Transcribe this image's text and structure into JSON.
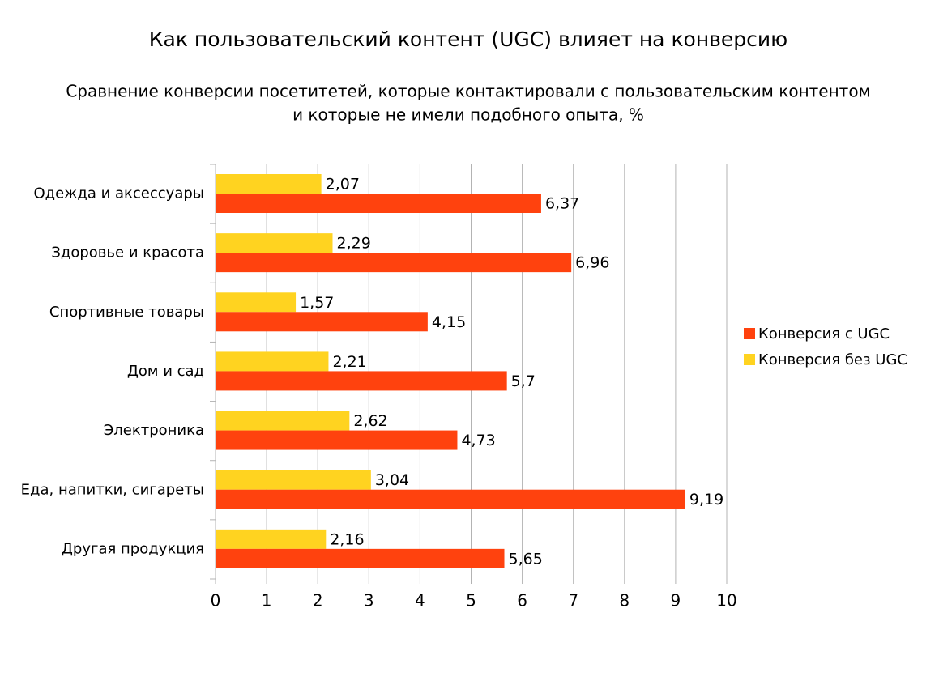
{
  "chart_data": {
    "type": "hbar",
    "title": "Как пользовательский контент (UGC) влияет на конверсию",
    "subtitle": [
      "Сравнение конверсии посетитетей, которые контактировали с пользовательским контентом",
      "и которые не имели подобного опыта, %"
    ],
    "categories": [
      "Одежда и аксессуары",
      "Здоровье и красота",
      "Спортивные товары",
      "Дом и сад",
      "Электроника",
      "Еда, напитки, сигареты",
      "Другая продукция"
    ],
    "series": [
      {
        "name": "Конверсия с UGC",
        "color": "#ff420e",
        "values": [
          6.37,
          6.96,
          4.15,
          5.7,
          4.73,
          9.19,
          5.65
        ],
        "value_labels": [
          "6,37",
          "6,96",
          "4,15",
          "5,7",
          "4,73",
          "9,19",
          "5,65"
        ]
      },
      {
        "name": "Конверсия без UGC",
        "color": "#ffd320",
        "values": [
          2.07,
          2.29,
          1.57,
          2.21,
          2.62,
          3.04,
          2.16
        ],
        "value_labels": [
          "2,07",
          "2,29",
          "1,57",
          "2,21",
          "2,62",
          "3,04",
          "2,16"
        ]
      }
    ],
    "xlim": [
      0,
      10
    ],
    "xticks": [
      0,
      1,
      2,
      3,
      4,
      5,
      6,
      7,
      8,
      9,
      10
    ],
    "grid": true,
    "legend": "right"
  }
}
